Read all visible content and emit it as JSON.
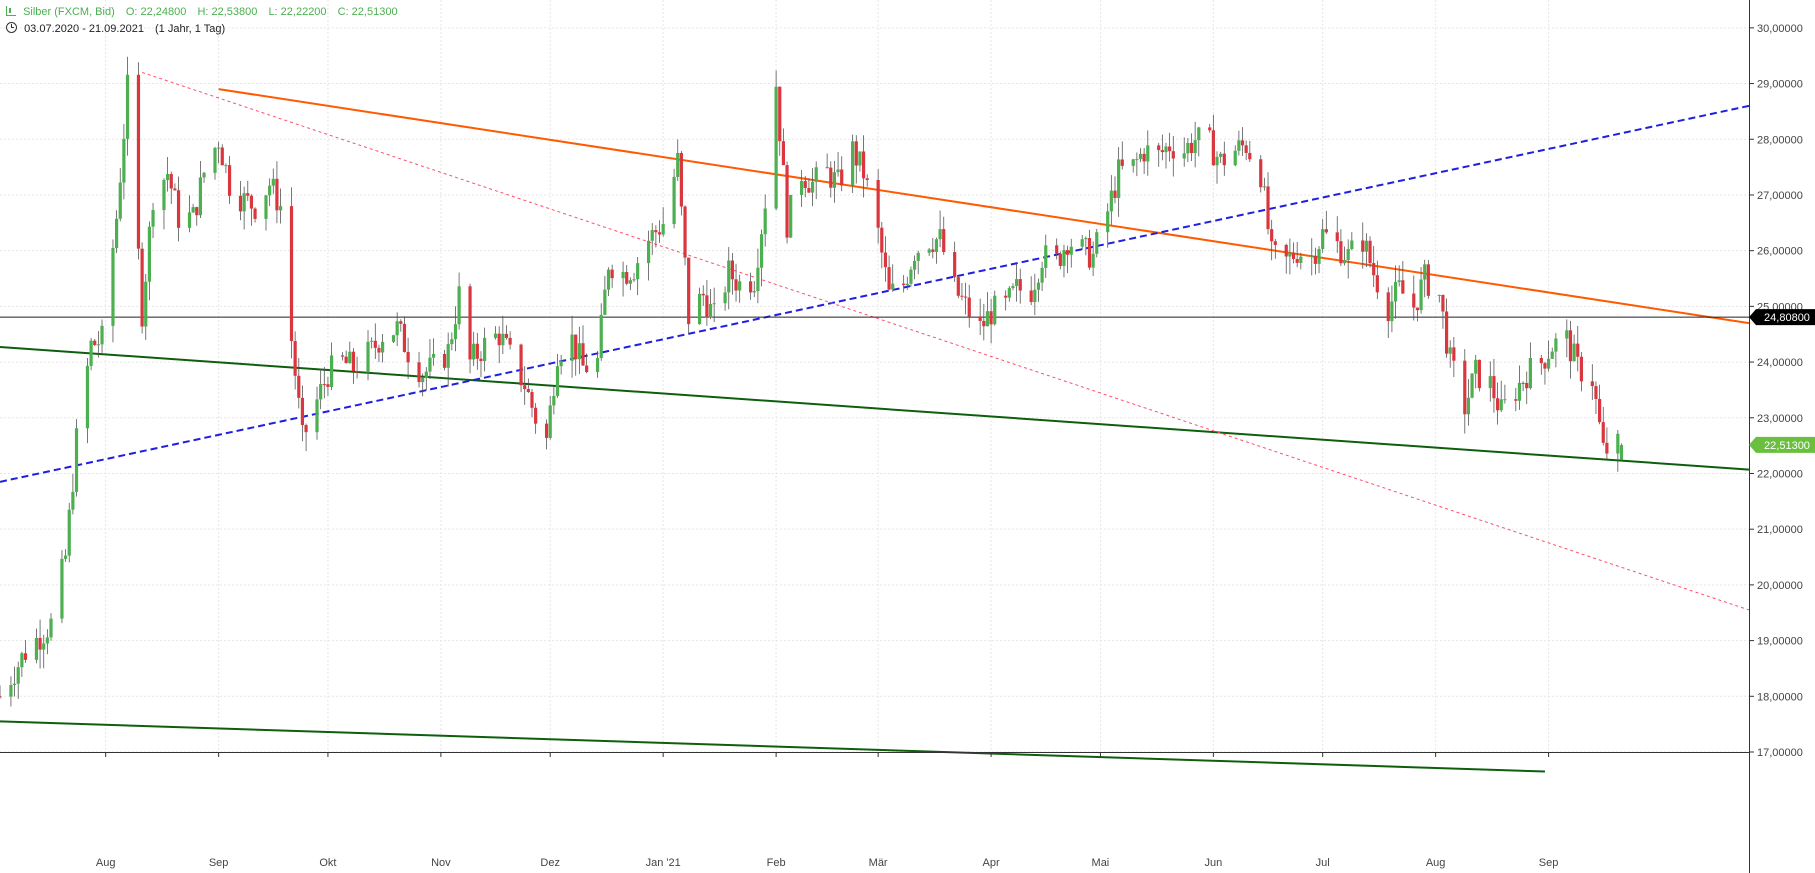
{
  "header": {
    "instrument": "Silber (FXCM, Bid)",
    "open": "O: 22,24800",
    "high": "H: 22,53800",
    "low": "L: 22,22200",
    "close": "C: 22,51300",
    "date_range": "03.07.2020 - 21.09.2021",
    "period": "(1 Jahr, 1 Tag)"
  },
  "colors": {
    "up": "#4caf50",
    "down": "#d9363e",
    "grid": "#e6e6e6",
    "axis": "#333333",
    "resistance": "#ff5a00",
    "trend_dashed": "#1f1fe0",
    "support": "#0d5e0d",
    "dotted": "#ff4d6d",
    "price_label_bg": "#000000",
    "last_label_bg": "#6abf3f"
  },
  "chart_data": {
    "type": "candlestick",
    "title": "Silber (FXCM, Bid)",
    "ylim": [
      17.0,
      30.5
    ],
    "grid": true,
    "y_ticks": [
      "17,00000",
      "18,00000",
      "19,00000",
      "20,00000",
      "21,00000",
      "22,00000",
      "23,00000",
      "24,00000",
      "25,00000",
      "26,00000",
      "27,00000",
      "28,00000",
      "29,00000",
      "30,00000"
    ],
    "y_tick_values": [
      17,
      18,
      19,
      20,
      21,
      22,
      23,
      24,
      25,
      26,
      27,
      28,
      29,
      30
    ],
    "x_ticks": [
      {
        "label": "Aug",
        "date": "2020-08-01"
      },
      {
        "label": "Sep",
        "date": "2020-09-01"
      },
      {
        "label": "Okt",
        "date": "2020-10-01"
      },
      {
        "label": "Nov",
        "date": "2020-11-01"
      },
      {
        "label": "Dez",
        "date": "2020-12-01"
      },
      {
        "label": "Jan '21",
        "date": "2021-01-01"
      },
      {
        "label": "Feb",
        "date": "2021-02-01"
      },
      {
        "label": "Mär",
        "date": "2021-03-01"
      },
      {
        "label": "Apr",
        "date": "2021-04-01"
      },
      {
        "label": "Mai",
        "date": "2021-05-01"
      },
      {
        "label": "Jun",
        "date": "2021-06-01"
      },
      {
        "label": "Jul",
        "date": "2021-07-01"
      },
      {
        "label": "Aug",
        "date": "2021-08-01"
      },
      {
        "label": "Sep",
        "date": "2021-09-01"
      }
    ],
    "x_range": [
      "2020-07-03",
      "2021-10-26"
    ],
    "close_path": [
      [
        "2020-07-03",
        18.0
      ],
      [
        "2020-07-10",
        18.8
      ],
      [
        "2020-07-17",
        19.3
      ],
      [
        "2020-07-21",
        20.5
      ],
      [
        "2020-07-24",
        22.6
      ],
      [
        "2020-07-28",
        24.3
      ],
      [
        "2020-07-31",
        24.4
      ],
      [
        "2020-08-04",
        26.6
      ],
      [
        "2020-08-07",
        28.9
      ],
      [
        "2020-08-11",
        24.9
      ],
      [
        "2020-08-14",
        27.0
      ],
      [
        "2020-08-18",
        27.4
      ],
      [
        "2020-08-21",
        26.6
      ],
      [
        "2020-08-25",
        26.6
      ],
      [
        "2020-08-28",
        27.4
      ],
      [
        "2020-09-01",
        28.0
      ],
      [
        "2020-09-04",
        27.2
      ],
      [
        "2020-09-08",
        26.9
      ],
      [
        "2020-09-11",
        26.8
      ],
      [
        "2020-09-15",
        27.2
      ],
      [
        "2020-09-18",
        26.8
      ],
      [
        "2020-09-21",
        24.4
      ],
      [
        "2020-09-24",
        22.6
      ],
      [
        "2020-09-28",
        23.3
      ],
      [
        "2020-10-01",
        23.8
      ],
      [
        "2020-10-05",
        24.0
      ],
      [
        "2020-10-08",
        23.9
      ],
      [
        "2020-10-13",
        24.2
      ],
      [
        "2020-10-16",
        24.5
      ],
      [
        "2020-10-20",
        24.6
      ],
      [
        "2020-10-23",
        24.2
      ],
      [
        "2020-10-27",
        23.8
      ],
      [
        "2020-10-30",
        23.9
      ],
      [
        "2020-11-03",
        24.2
      ],
      [
        "2020-11-06",
        25.2
      ],
      [
        "2020-11-09",
        24.0
      ],
      [
        "2020-11-13",
        24.3
      ],
      [
        "2020-11-17",
        24.5
      ],
      [
        "2020-11-20",
        24.1
      ],
      [
        "2020-11-24",
        23.6
      ],
      [
        "2020-11-27",
        23.0
      ],
      [
        "2020-11-30",
        22.6
      ],
      [
        "2020-12-03",
        24.2
      ],
      [
        "2020-12-07",
        24.4
      ],
      [
        "2020-12-10",
        23.9
      ],
      [
        "2020-12-14",
        24.0
      ],
      [
        "2020-12-17",
        25.8
      ],
      [
        "2020-12-21",
        25.6
      ],
      [
        "2020-12-24",
        25.7
      ],
      [
        "2020-12-28",
        26.2
      ],
      [
        "2021-01-01",
        26.5
      ],
      [
        "2021-01-05",
        27.6
      ],
      [
        "2021-01-08",
        24.8
      ],
      [
        "2021-01-12",
        25.2
      ],
      [
        "2021-01-15",
        24.8
      ],
      [
        "2021-01-19",
        25.6
      ],
      [
        "2021-01-22",
        25.4
      ],
      [
        "2021-01-26",
        25.5
      ],
      [
        "2021-01-29",
        26.9
      ],
      [
        "2021-02-01",
        29.0
      ],
      [
        "2021-02-04",
        26.5
      ],
      [
        "2021-02-08",
        27.4
      ],
      [
        "2021-02-11",
        27.2
      ],
      [
        "2021-02-15",
        27.4
      ],
      [
        "2021-02-18",
        27.2
      ],
      [
        "2021-02-22",
        27.8
      ],
      [
        "2021-02-25",
        27.4
      ],
      [
        "2021-03-01",
        26.3
      ],
      [
        "2021-03-04",
        25.2
      ],
      [
        "2021-03-08",
        25.4
      ],
      [
        "2021-03-11",
        26.0
      ],
      [
        "2021-03-15",
        26.2
      ],
      [
        "2021-03-18",
        26.2
      ],
      [
        "2021-03-22",
        25.3
      ],
      [
        "2021-03-25",
        25.0
      ],
      [
        "2021-03-29",
        24.6
      ],
      [
        "2021-04-01",
        24.9
      ],
      [
        "2021-04-05",
        25.0
      ],
      [
        "2021-04-08",
        25.3
      ],
      [
        "2021-04-12",
        25.3
      ],
      [
        "2021-04-15",
        25.9
      ],
      [
        "2021-04-19",
        25.8
      ],
      [
        "2021-04-22",
        26.2
      ],
      [
        "2021-04-26",
        26.0
      ],
      [
        "2021-04-29",
        25.9
      ],
      [
        "2021-05-03",
        26.7
      ],
      [
        "2021-05-06",
        27.4
      ],
      [
        "2021-05-10",
        27.5
      ],
      [
        "2021-05-13",
        27.8
      ],
      [
        "2021-05-17",
        27.7
      ],
      [
        "2021-05-20",
        27.9
      ],
      [
        "2021-05-24",
        27.8
      ],
      [
        "2021-05-27",
        28.0
      ],
      [
        "2021-05-31",
        27.9
      ],
      [
        "2021-06-03",
        27.6
      ],
      [
        "2021-06-07",
        27.8
      ],
      [
        "2021-06-10",
        27.9
      ],
      [
        "2021-06-14",
        27.4
      ],
      [
        "2021-06-17",
        25.9
      ],
      [
        "2021-06-21",
        25.8
      ],
      [
        "2021-06-24",
        26.0
      ],
      [
        "2021-06-28",
        25.9
      ],
      [
        "2021-07-01",
        26.3
      ],
      [
        "2021-07-05",
        26.1
      ],
      [
        "2021-07-08",
        25.9
      ],
      [
        "2021-07-12",
        26.2
      ],
      [
        "2021-07-15",
        25.6
      ],
      [
        "2021-07-19",
        25.0
      ],
      [
        "2021-07-22",
        25.3
      ],
      [
        "2021-07-26",
        25.0
      ],
      [
        "2021-07-29",
        25.5
      ],
      [
        "2021-08-02",
        25.2
      ],
      [
        "2021-08-05",
        24.0
      ],
      [
        "2021-08-09",
        23.2
      ],
      [
        "2021-08-12",
        23.8
      ],
      [
        "2021-08-16",
        23.6
      ],
      [
        "2021-08-19",
        23.1
      ],
      [
        "2021-08-23",
        23.5
      ],
      [
        "2021-08-26",
        23.8
      ],
      [
        "2021-08-30",
        24.0
      ],
      [
        "2021-09-02",
        24.3
      ],
      [
        "2021-09-06",
        24.4
      ],
      [
        "2021-09-09",
        23.9
      ],
      [
        "2021-09-13",
        23.7
      ],
      [
        "2021-09-16",
        22.4
      ],
      [
        "2021-09-21",
        22.51
      ]
    ],
    "reference_lines": [
      {
        "kind": "resistance",
        "style": "solid",
        "from": [
          "2020-09-01",
          28.9
        ],
        "to": [
          "2021-10-26",
          24.7
        ]
      },
      {
        "kind": "support_upper",
        "style": "solid",
        "from": [
          "2020-07-03",
          24.27
        ],
        "to": [
          "2021-10-26",
          22.07
        ]
      },
      {
        "kind": "support_lower",
        "style": "solid",
        "from": [
          "2020-07-03",
          17.55
        ],
        "to": [
          "2021-08-31",
          16.65
        ]
      },
      {
        "kind": "uptrend",
        "style": "dashed",
        "from": [
          "2020-07-03",
          21.85
        ],
        "to": [
          "2021-10-26",
          28.6
        ]
      },
      {
        "kind": "downtrend",
        "style": "dotted",
        "from": [
          "2020-08-11",
          29.2
        ],
        "to": [
          "2021-10-26",
          19.55
        ]
      },
      {
        "kind": "horizontal",
        "style": "solid",
        "y": 24.808
      }
    ],
    "price_labels": [
      {
        "text": "24,80800",
        "value": 24.808,
        "kind": "horizontal"
      },
      {
        "text": "22,51300",
        "value": 22.513,
        "kind": "last"
      }
    ]
  }
}
